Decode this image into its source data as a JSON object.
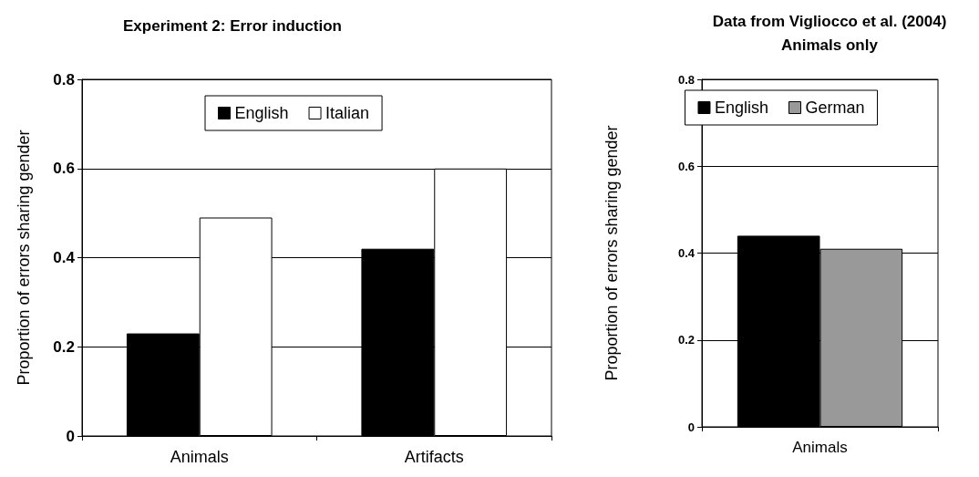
{
  "chart_data": [
    {
      "type": "bar",
      "title": "Experiment 2: Error induction",
      "ylabel": "Proportion of errors sharing gender",
      "categories": [
        "Animals",
        "Artifacts"
      ],
      "series": [
        {
          "name": "English",
          "color": "#000000",
          "values": [
            0.23,
            0.42
          ]
        },
        {
          "name": "Italian",
          "color": "#ffffff",
          "values": [
            0.49,
            0.6
          ]
        }
      ],
      "ylim": [
        0,
        0.8
      ],
      "yticks": [
        0,
        0.2,
        0.4,
        0.6,
        0.8
      ],
      "grid": "y",
      "legend": "top"
    },
    {
      "type": "bar",
      "title": "Data from Vigliocco et al. (2004)\nAnimals only",
      "ylabel": "Proportion of errors sharing gender",
      "categories": [
        "Animals"
      ],
      "series": [
        {
          "name": "English",
          "color": "#000000",
          "values": [
            0.44
          ]
        },
        {
          "name": "German",
          "color": "#999999",
          "values": [
            0.41
          ]
        }
      ],
      "ylim": [
        0,
        0.8
      ],
      "yticks": [
        0,
        0.2,
        0.4,
        0.6,
        0.8
      ],
      "grid": "y",
      "legend": "top"
    }
  ]
}
